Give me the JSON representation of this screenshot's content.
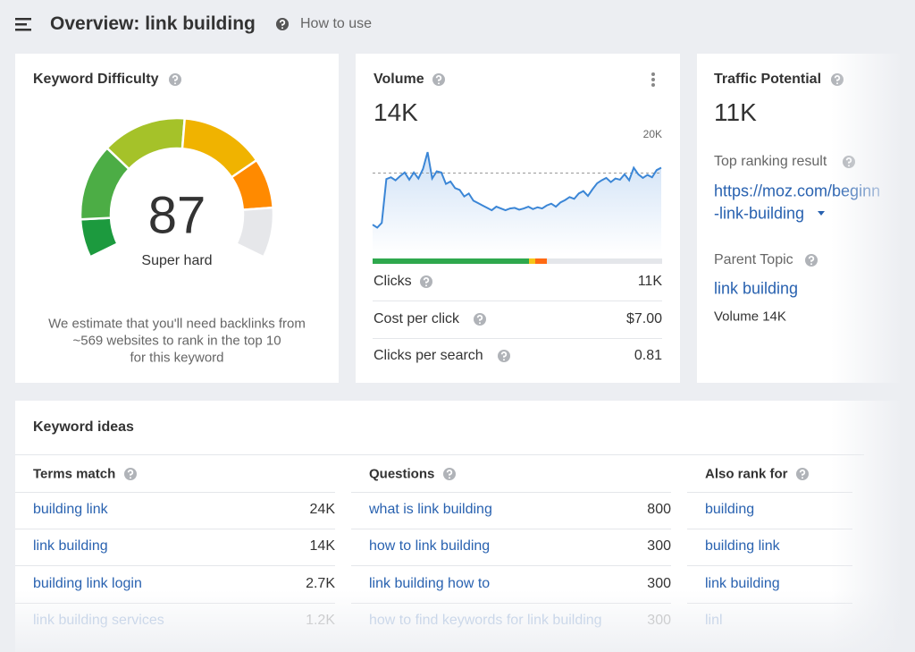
{
  "header": {
    "title": "Overview: link building",
    "help": "How to use"
  },
  "keyword_difficulty": {
    "title": "Keyword Difficulty",
    "score": 87,
    "label": "Super hard",
    "note_lines": [
      "We estimate that you'll need backlinks from",
      "~569 websites to rank in the top 10",
      "for this keyword"
    ]
  },
  "volume": {
    "title": "Volume",
    "value": "14K",
    "chart": {
      "ylim": [
        0,
        20000
      ],
      "yticks": [
        {
          "value": 20000,
          "label": "20K"
        }
      ],
      "reference": 13500,
      "values": [
        4900,
        4400,
        5200,
        12500,
        12800,
        12300,
        13000,
        13600,
        12400,
        13600,
        12600,
        14200,
        17000,
        12600,
        13800,
        13600,
        11700,
        12100,
        11000,
        10700,
        9600,
        10100,
        8900,
        8500,
        8100,
        7700,
        7300,
        7900,
        7600,
        7300,
        7600,
        7700,
        7400,
        7600,
        7900,
        7500,
        7800,
        7600,
        8100,
        8400,
        7900,
        8600,
        9000,
        9500,
        9200,
        10100,
        10500,
        9700,
        10800,
        11800,
        12300,
        12700,
        12000,
        12600,
        12400,
        13300,
        12300,
        14400,
        13300,
        12700,
        13200,
        12800,
        14000,
        14400
      ]
    },
    "metrics": [
      {
        "label": "Clicks",
        "value": "11K"
      },
      {
        "label": "Cost per click",
        "value": "$7.00"
      },
      {
        "label": "Clicks per search",
        "value": "0.81"
      }
    ]
  },
  "traffic_potential": {
    "title": "Traffic Potential",
    "value": "11K",
    "top_label": "Top ranking result",
    "url_lines": [
      "https://moz.com/beginn",
      "-link-building"
    ],
    "parent_label": "Parent Topic",
    "parent_topic": "link building",
    "parent_volume": "Volume 14K"
  },
  "keyword_ideas": {
    "title": "Keyword ideas",
    "columns": [
      {
        "heading": "Terms match",
        "rows": [
          {
            "term": "building link",
            "volume": "24K"
          },
          {
            "term": "link building",
            "volume": "14K"
          },
          {
            "term": "building link login",
            "volume": "2.7K"
          },
          {
            "term": "link building services",
            "volume": "1.2K"
          }
        ]
      },
      {
        "heading": "Questions",
        "rows": [
          {
            "term": "what is link building",
            "volume": "800"
          },
          {
            "term": "how to link building",
            "volume": "300"
          },
          {
            "term": "link building how to",
            "volume": "300"
          },
          {
            "term": "how to find keywords for link building",
            "volume": "300"
          }
        ]
      },
      {
        "heading": "Also rank for",
        "rows": [
          {
            "term": "building"
          },
          {
            "term": "building link"
          },
          {
            "term": "link building"
          },
          {
            "term": "linl"
          }
        ]
      }
    ]
  }
}
